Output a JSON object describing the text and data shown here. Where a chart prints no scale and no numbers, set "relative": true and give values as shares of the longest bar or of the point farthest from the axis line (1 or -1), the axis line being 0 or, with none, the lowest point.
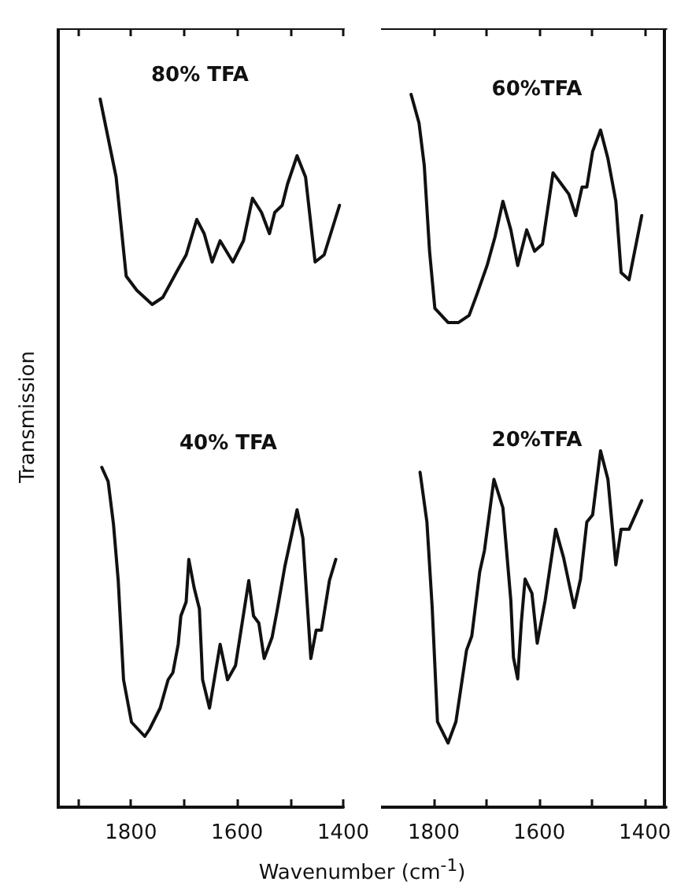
{
  "chart_data": [
    {
      "type": "line",
      "ylabel": "Transmission",
      "xlabel": "Wavenumber (cm$^{-1}$)",
      "relative": true,
      "xlim": [
        1940,
        1400
      ],
      "xticks": [
        {
          "value": 1900,
          "label": null
        },
        1800,
        {
          "value": 1700,
          "label": null
        },
        1600,
        {
          "value": 1500,
          "label": null
        },
        1400
      ],
      "tick_labels": "x",
      "series": [
        {
          "name": "80% TFA",
          "color": "#111111",
          "x": [
            1858,
            1828,
            1809,
            1789,
            1760,
            1740,
            1711,
            1696,
            1676,
            1662,
            1647,
            1632,
            1608,
            1588,
            1571,
            1554,
            1539,
            1529,
            1515,
            1505,
            1487,
            1471,
            1453,
            1436,
            1407
          ],
          "values": [
            1,
            0.89,
            0.75,
            0.73,
            0.71,
            0.72,
            0.76,
            0.78,
            0.83,
            0.81,
            0.77,
            0.8,
            0.77,
            0.8,
            0.86,
            0.84,
            0.81,
            0.84,
            0.85,
            0.88,
            0.92,
            0.89,
            0.77,
            0.78,
            0.85
          ]
        },
        {
          "name": "40% TFA",
          "color": "#111111",
          "x": [
            1855,
            1843,
            1833,
            1824,
            1814,
            1799,
            1774,
            1765,
            1745,
            1730,
            1721,
            1711,
            1706,
            1696,
            1691,
            1681,
            1671,
            1665,
            1652,
            1632,
            1618,
            1603,
            1578,
            1569,
            1559,
            1549,
            1534,
            1524,
            1510,
            1487,
            1476,
            1461,
            1451,
            1441,
            1426,
            1414
          ],
          "values": [
            0.48,
            0.46,
            0.4,
            0.32,
            0.18,
            0.12,
            0.1,
            0.11,
            0.14,
            0.18,
            0.19,
            0.23,
            0.27,
            0.29,
            0.35,
            0.31,
            0.28,
            0.18,
            0.14,
            0.23,
            0.18,
            0.2,
            0.32,
            0.27,
            0.26,
            0.21,
            0.24,
            0.28,
            0.34,
            0.42,
            0.38,
            0.21,
            0.25,
            0.25,
            0.32,
            0.35
          ]
        }
      ]
    },
    {
      "type": "line",
      "relative": true,
      "xlim": [
        1900,
        1360
      ],
      "xticks": [
        1800,
        {
          "value": 1700,
          "label": null
        },
        1600,
        {
          "value": 1500,
          "label": null
        },
        1400
      ],
      "tick_labels": "x",
      "series": [
        {
          "name": "60%TFA",
          "color": "#111111",
          "x": [
            1843,
            1828,
            1818,
            1808,
            1798,
            1773,
            1753,
            1733,
            1718,
            1699,
            1684,
            1669,
            1654,
            1641,
            1624,
            1609,
            1594,
            1574,
            1554,
            1544,
            1531,
            1519,
            1510,
            1499,
            1484,
            1470,
            1455,
            1445,
            1430,
            1406
          ],
          "values": [
            1,
            0.96,
            0.9,
            0.78,
            0.7,
            0.68,
            0.68,
            0.69,
            0.72,
            0.76,
            0.8,
            0.85,
            0.81,
            0.76,
            0.81,
            0.78,
            0.79,
            0.89,
            0.87,
            0.86,
            0.83,
            0.87,
            0.87,
            0.92,
            0.95,
            0.91,
            0.85,
            0.75,
            0.74,
            0.83
          ]
        },
        {
          "name": "20%TFA",
          "color": "#111111",
          "x": [
            1826,
            1813,
            1803,
            1793,
            1773,
            1758,
            1738,
            1728,
            1713,
            1704,
            1686,
            1669,
            1654,
            1649,
            1641,
            1634,
            1627,
            1614,
            1604,
            1589,
            1569,
            1554,
            1534,
            1522,
            1510,
            1499,
            1484,
            1470,
            1455,
            1445,
            1430,
            1406
          ],
          "values": [
            0.47,
            0.4,
            0.28,
            0.12,
            0.09,
            0.12,
            0.22,
            0.24,
            0.33,
            0.36,
            0.46,
            0.42,
            0.29,
            0.21,
            0.18,
            0.26,
            0.32,
            0.3,
            0.23,
            0.29,
            0.39,
            0.35,
            0.28,
            0.32,
            0.4,
            0.41,
            0.5,
            0.46,
            0.34,
            0.39,
            0.39,
            0.43
          ]
        }
      ]
    }
  ]
}
